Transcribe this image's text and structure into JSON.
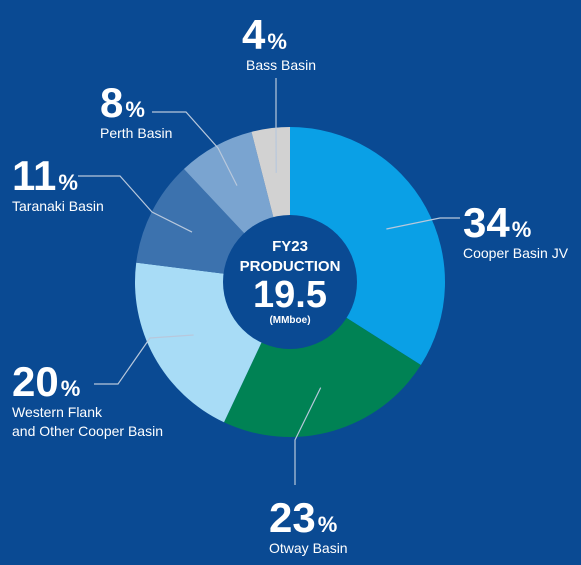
{
  "chart_data": {
    "type": "pie",
    "center": {
      "line1": "FY23",
      "line2": "PRODUCTION",
      "value": "19.5",
      "unit": "(MMboe)"
    },
    "slices": [
      {
        "name": "Cooper Basin JV",
        "label": [
          "Cooper Basin JV"
        ],
        "value": 34,
        "color": "#0aa0e6"
      },
      {
        "name": "Otway Basin",
        "label": [
          "Otway Basin"
        ],
        "value": 23,
        "color": "#008254"
      },
      {
        "name": "Western Flank and Other Cooper Basin",
        "label": [
          "Western Flank",
          "and Other Cooper Basin"
        ],
        "value": 20,
        "color": "#a8dcf6"
      },
      {
        "name": "Taranaki Basin",
        "label": [
          "Taranaki Basin"
        ],
        "value": 11,
        "color": "#3c72ae"
      },
      {
        "name": "Perth Basin",
        "label": [
          "Perth Basin"
        ],
        "value": 8,
        "color": "#7aa4d0"
      },
      {
        "name": "Bass Basin",
        "label": [
          "Bass Basin"
        ],
        "value": 4,
        "color": "#d2d2d2"
      }
    ],
    "value_suffix": "%",
    "colors": {
      "background": "#0a4a93",
      "leader": "#b8c8dc"
    }
  }
}
